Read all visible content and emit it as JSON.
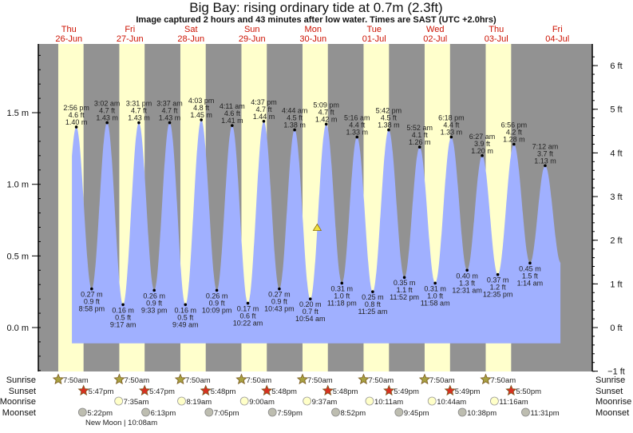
{
  "chart_data": {
    "type": "area",
    "title": "Big Bay: rising  ordinary tide at 0.7m (2.3ft)",
    "subtitle": "Image captured 2 hours and 43 minutes after low water. Times are SAST (UTC +2.0hrs)",
    "colors": {
      "night": "#929292",
      "day": "#ffffcc",
      "tide": "#a0b0ff",
      "day_label": "#cc1100"
    },
    "days": [
      {
        "dow": "Thu",
        "date": "26-Jun"
      },
      {
        "dow": "Fri",
        "date": "27-Jun"
      },
      {
        "dow": "Sat",
        "date": "28-Jun"
      },
      {
        "dow": "Sun",
        "date": "29-Jun"
      },
      {
        "dow": "Mon",
        "date": "30-Jun"
      },
      {
        "dow": "Tue",
        "date": "01-Jul"
      },
      {
        "dow": "Wed",
        "date": "02-Jul"
      },
      {
        "dow": "Thu",
        "date": "03-Jul"
      },
      {
        "dow": "Fri",
        "date": "04-Jul"
      }
    ],
    "y_left": {
      "unit": "m",
      "ticks": [
        "0.0 m",
        "0.5 m",
        "1.0 m",
        "1.5 m"
      ],
      "tick_values": [
        0,
        0.5,
        1.0,
        1.5
      ]
    },
    "y_right": {
      "unit": "ft",
      "ticks": [
        "−1 ft",
        "0 ft",
        "1 ft",
        "2 ft",
        "3 ft",
        "4 ft",
        "5 ft",
        "6 ft"
      ],
      "tick_values": [
        -1,
        0,
        1,
        2,
        3,
        4,
        5,
        6
      ]
    },
    "ylim_m": [
      -0.3,
      1.98
    ],
    "extremes": [
      {
        "date": "26-Jun",
        "time": "2:56 pm",
        "type": "high",
        "m": "1.40 m",
        "ft": "4.6 ft",
        "value": 1.4
      },
      {
        "date": "26-Jun",
        "time": "8:58 pm",
        "type": "low",
        "m": "0.27 m",
        "ft": "0.9 ft",
        "value": 0.27
      },
      {
        "date": "27-Jun",
        "time": "3:02 am",
        "type": "high",
        "m": "1.43 m",
        "ft": "4.7 ft",
        "value": 1.43
      },
      {
        "date": "27-Jun",
        "time": "9:17 am",
        "type": "low",
        "m": "0.16 m",
        "ft": "0.5 ft",
        "value": 0.16
      },
      {
        "date": "27-Jun",
        "time": "3:31 pm",
        "type": "high",
        "m": "1.43 m",
        "ft": "4.7 ft",
        "value": 1.43
      },
      {
        "date": "27-Jun",
        "time": "9:33 pm",
        "type": "low",
        "m": "0.26 m",
        "ft": "0.9 ft",
        "value": 0.26
      },
      {
        "date": "28-Jun",
        "time": "3:37 am",
        "type": "high",
        "m": "1.43 m",
        "ft": "4.7 ft",
        "value": 1.43
      },
      {
        "date": "28-Jun",
        "time": "9:49 am",
        "type": "low",
        "m": "0.16 m",
        "ft": "0.5 ft",
        "value": 0.16
      },
      {
        "date": "28-Jun",
        "time": "4:03 pm",
        "type": "high",
        "m": "1.45 m",
        "ft": "4.8 ft",
        "value": 1.45
      },
      {
        "date": "28-Jun",
        "time": "10:09 pm",
        "type": "low",
        "m": "0.26 m",
        "ft": "0.9 ft",
        "value": 0.26
      },
      {
        "date": "29-Jun",
        "time": "4:11 am",
        "type": "high",
        "m": "1.41 m",
        "ft": "4.6 ft",
        "value": 1.41
      },
      {
        "date": "29-Jun",
        "time": "10:22 am",
        "type": "low",
        "m": "0.17 m",
        "ft": "0.6 ft",
        "value": 0.17
      },
      {
        "date": "29-Jun",
        "time": "4:37 pm",
        "type": "high",
        "m": "1.44 m",
        "ft": "4.7 ft",
        "value": 1.44
      },
      {
        "date": "29-Jun",
        "time": "10:43 pm",
        "type": "low",
        "m": "0.27 m",
        "ft": "0.9 ft",
        "value": 0.27
      },
      {
        "date": "30-Jun",
        "time": "4:44 am",
        "type": "high",
        "m": "1.38 m",
        "ft": "4.5 ft",
        "value": 1.38
      },
      {
        "date": "30-Jun",
        "time": "10:54 am",
        "type": "low",
        "m": "0.20 m",
        "ft": "0.7 ft",
        "value": 0.2
      },
      {
        "date": "30-Jun",
        "time": "5:09 pm",
        "type": "high",
        "m": "1.42 m",
        "ft": "4.7 ft",
        "value": 1.42
      },
      {
        "date": "30-Jun",
        "time": "11:18 pm",
        "type": "low",
        "m": "0.31 m",
        "ft": "1.0 ft",
        "value": 0.31
      },
      {
        "date": "01-Jul",
        "time": "5:16 am",
        "type": "high",
        "m": "1.33 m",
        "ft": "4.4 ft",
        "value": 1.33
      },
      {
        "date": "01-Jul",
        "time": "11:25 am",
        "type": "low",
        "m": "0.25 m",
        "ft": "0.8 ft",
        "value": 0.25
      },
      {
        "date": "01-Jul",
        "time": "5:42 pm",
        "type": "high",
        "m": "1.38 m",
        "ft": "4.5 ft",
        "value": 1.38
      },
      {
        "date": "01-Jul",
        "time": "11:52 pm",
        "type": "low",
        "m": "0.35 m",
        "ft": "1.1 ft",
        "value": 0.35
      },
      {
        "date": "02-Jul",
        "time": "5:52 am",
        "type": "high",
        "m": "1.26 m",
        "ft": "4.1 ft",
        "value": 1.26
      },
      {
        "date": "02-Jul",
        "time": "11:58 am",
        "type": "low",
        "m": "0.31 m",
        "ft": "1.0 ft",
        "value": 0.31
      },
      {
        "date": "02-Jul",
        "time": "6:18 pm",
        "type": "high",
        "m": "1.33 m",
        "ft": "4.4 ft",
        "value": 1.33
      },
      {
        "date": "03-Jul",
        "time": "12:31 am",
        "type": "low",
        "m": "0.40 m",
        "ft": "1.3 ft",
        "value": 0.4
      },
      {
        "date": "03-Jul",
        "time": "6:27 am",
        "type": "high",
        "m": "1.20 m",
        "ft": "3.9 ft",
        "value": 1.2
      },
      {
        "date": "03-Jul",
        "time": "12:35 pm",
        "type": "low",
        "m": "0.37 m",
        "ft": "1.2 ft",
        "value": 0.37
      },
      {
        "date": "03-Jul",
        "time": "6:56 pm",
        "type": "high",
        "m": "1.28 m",
        "ft": "4.2 ft",
        "value": 1.28
      },
      {
        "date": "04-Jul",
        "time": "1:14 am",
        "type": "low",
        "m": "0.45 m",
        "ft": "1.5 ft",
        "value": 0.45
      },
      {
        "date": "04-Jul",
        "time": "7:12 am",
        "type": "high",
        "m": "1.13 m",
        "ft": "3.7 ft",
        "value": 1.13
      }
    ],
    "current": {
      "date": "30-Jun",
      "time": "1:37 pm",
      "value": 0.7
    },
    "rows": {
      "sunrise": {
        "label": "Sunrise",
        "items": [
          {
            "date": "26-Jun",
            "time": "7:50am"
          },
          {
            "date": "27-Jun",
            "time": "7:50am"
          },
          {
            "date": "28-Jun",
            "time": "7:50am"
          },
          {
            "date": "29-Jun",
            "time": "7:50am"
          },
          {
            "date": "30-Jun",
            "time": "7:50am"
          },
          {
            "date": "01-Jul",
            "time": "7:50am"
          },
          {
            "date": "02-Jul",
            "time": "7:50am"
          },
          {
            "date": "03-Jul",
            "time": "7:50am"
          }
        ]
      },
      "sunset": {
        "label": "Sunset",
        "items": [
          {
            "date": "26-Jun",
            "time": "5:47pm"
          },
          {
            "date": "27-Jun",
            "time": "5:47pm"
          },
          {
            "date": "28-Jun",
            "time": "5:48pm"
          },
          {
            "date": "29-Jun",
            "time": "5:48pm"
          },
          {
            "date": "30-Jun",
            "time": "5:48pm"
          },
          {
            "date": "01-Jul",
            "time": "5:49pm"
          },
          {
            "date": "02-Jul",
            "time": "5:49pm"
          },
          {
            "date": "03-Jul",
            "time": "5:50pm"
          }
        ]
      },
      "moonrise": {
        "label": "Moonrise",
        "items": [
          {
            "date": "27-Jun",
            "time": "7:35am"
          },
          {
            "date": "28-Jun",
            "time": "8:19am"
          },
          {
            "date": "29-Jun",
            "time": "9:00am"
          },
          {
            "date": "30-Jun",
            "time": "9:37am"
          },
          {
            "date": "01-Jul",
            "time": "10:11am"
          },
          {
            "date": "02-Jul",
            "time": "10:44am"
          },
          {
            "date": "03-Jul",
            "time": "11:16am"
          }
        ]
      },
      "moonset": {
        "label": "Moonset",
        "items": [
          {
            "date": "26-Jun",
            "time": "5:22pm"
          },
          {
            "date": "27-Jun",
            "time": "6:13pm"
          },
          {
            "date": "28-Jun",
            "time": "7:05pm"
          },
          {
            "date": "29-Jun",
            "time": "7:59pm"
          },
          {
            "date": "30-Jun",
            "time": "8:52pm"
          },
          {
            "date": "01-Jul",
            "time": "9:45pm"
          },
          {
            "date": "02-Jul",
            "time": "10:38pm"
          },
          {
            "date": "03-Jul",
            "time": "11:31pm"
          }
        ]
      }
    },
    "moon_phase": "New Moon | 10:08am"
  }
}
